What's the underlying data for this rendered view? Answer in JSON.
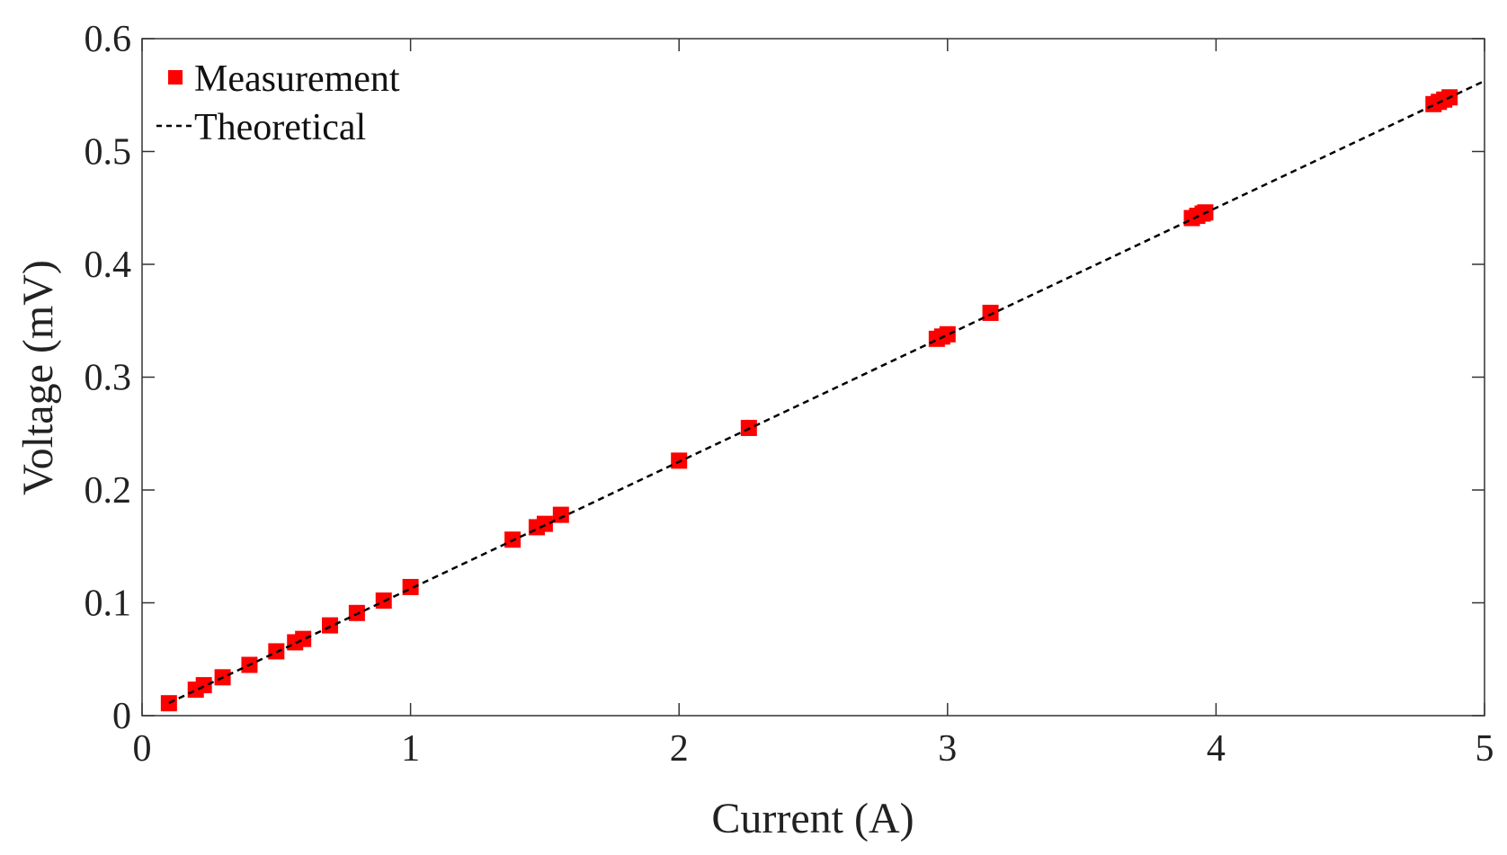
{
  "chart_data": {
    "type": "scatter",
    "title": "",
    "xlabel": "Current (A)",
    "ylabel": "Voltage (mV)",
    "xlim": [
      0,
      5
    ],
    "ylim": [
      0,
      0.6
    ],
    "xticks": [
      "0",
      "1",
      "2",
      "3",
      "4",
      "5"
    ],
    "yticks": [
      "0",
      "0.1",
      "0.2",
      "0.3",
      "0.4",
      "0.5",
      "0.6"
    ],
    "grid": false,
    "legend_position": "top-left",
    "colors": {
      "measurement": "#ff0000",
      "theoretical": "#000000"
    },
    "series": [
      {
        "name": "Measurement",
        "style": "red-square-markers",
        "x": [
          0.1,
          0.2,
          0.23,
          0.3,
          0.4,
          0.5,
          0.57,
          0.6,
          0.7,
          0.8,
          0.9,
          1.0,
          1.38,
          1.47,
          1.5,
          1.56,
          2.0,
          2.26,
          2.96,
          2.98,
          3.0,
          3.16,
          3.91,
          3.93,
          3.95,
          3.96,
          4.81,
          4.83,
          4.85,
          4.87
        ],
        "y": [
          0.011,
          0.023,
          0.027,
          0.034,
          0.045,
          0.057,
          0.065,
          0.068,
          0.08,
          0.091,
          0.102,
          0.114,
          0.156,
          0.167,
          0.17,
          0.178,
          0.226,
          0.255,
          0.334,
          0.336,
          0.338,
          0.357,
          0.441,
          0.443,
          0.445,
          0.446,
          0.542,
          0.544,
          0.546,
          0.548
        ]
      },
      {
        "name": "Theoretical",
        "style": "black-dashed-line",
        "x": [
          0.1,
          5.0
        ],
        "y": [
          0.01125,
          0.5625
        ]
      }
    ]
  }
}
